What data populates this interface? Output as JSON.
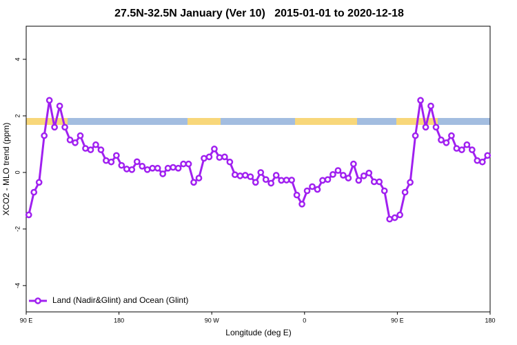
{
  "chart_data": {
    "type": "line",
    "title": "27.5N-32.5N January (Ver 10)   2015-01-01 to 2020-12-18",
    "xlabel": "Longitude (deg E)",
    "ylabel": "XCO2 - MLO trend (ppm)",
    "xlim": [
      90,
      540
    ],
    "xticks": [
      {
        "value": 90,
        "label": "90 E"
      },
      {
        "value": 180,
        "label": "180"
      },
      {
        "value": 270,
        "label": "90 W"
      },
      {
        "value": 360,
        "label": "0"
      },
      {
        "value": 450,
        "label": "90 E"
      },
      {
        "value": 540,
        "label": "180"
      }
    ],
    "ylim": [
      -4.93,
      5.17
    ],
    "yticks": [
      -4,
      -2,
      0,
      2,
      4
    ],
    "legend": "bottom-left",
    "x": [
      92.5,
      97.5,
      102.5,
      107.5,
      112.5,
      117.5,
      122.5,
      127.5,
      132.5,
      137.5,
      142.5,
      147.5,
      152.5,
      157.5,
      162.5,
      167.5,
      172.5,
      177.5,
      182.5,
      187.5,
      192.5,
      197.5,
      202.5,
      207.5,
      212.5,
      217.5,
      222.5,
      227.5,
      232.5,
      237.5,
      242.5,
      247.5,
      252.5,
      257.5,
      262.5,
      267.5,
      272.5,
      277.5,
      282.5,
      287.5,
      292.5,
      297.5,
      302.5,
      307.5,
      312.5,
      317.5,
      322.5,
      327.5,
      332.5,
      337.5,
      342.5,
      347.5,
      352.5,
      357.5,
      362.5,
      367.5,
      372.5,
      377.5,
      382.5,
      387.5,
      392.5,
      397.5,
      402.5,
      407.5,
      412.5,
      417.5,
      422.5,
      427.5,
      432.5,
      437.5,
      442.5,
      447.5,
      452.5,
      457.5,
      462.5,
      467.5,
      472.5,
      477.5,
      482.5,
      487.5,
      492.5,
      497.5,
      502.5,
      507.5,
      512.5,
      517.5,
      522.5,
      527.5,
      532.5,
      537.5
    ],
    "series": [
      {
        "name": "Land (Nadir&Glint) and Ocean (Glint)",
        "color": "#a020f0",
        "values": [
          -1.5,
          -0.7,
          -0.35,
          1.3,
          2.55,
          1.6,
          2.35,
          1.6,
          1.15,
          1.05,
          1.3,
          0.85,
          0.8,
          0.98,
          0.8,
          0.42,
          0.37,
          0.6,
          0.25,
          0.12,
          0.1,
          0.38,
          0.22,
          0.1,
          0.15,
          0.15,
          -0.05,
          0.15,
          0.18,
          0.15,
          0.3,
          0.3,
          -0.35,
          -0.2,
          0.5,
          0.55,
          0.83,
          0.53,
          0.55,
          0.37,
          -0.08,
          -0.12,
          -0.1,
          -0.15,
          -0.35,
          0,
          -0.25,
          -0.38,
          -0.1,
          -0.28,
          -0.27,
          -0.27,
          -0.8,
          -1.12,
          -0.65,
          -0.5,
          -0.6,
          -0.28,
          -0.25,
          -0.07,
          0.07,
          -0.1,
          -0.2,
          0.3,
          -0.28,
          -0.12,
          -0.02,
          -0.33,
          -0.33,
          -0.65,
          -1.65,
          -1.6,
          -1.5,
          -0.7,
          -0.35,
          1.3,
          2.55,
          1.6,
          2.35,
          1.6,
          1.15,
          1.05,
          1.3,
          0.85,
          0.8,
          0.98,
          0.8,
          0.42,
          0.37,
          0.6
        ]
      }
    ]
  }
}
